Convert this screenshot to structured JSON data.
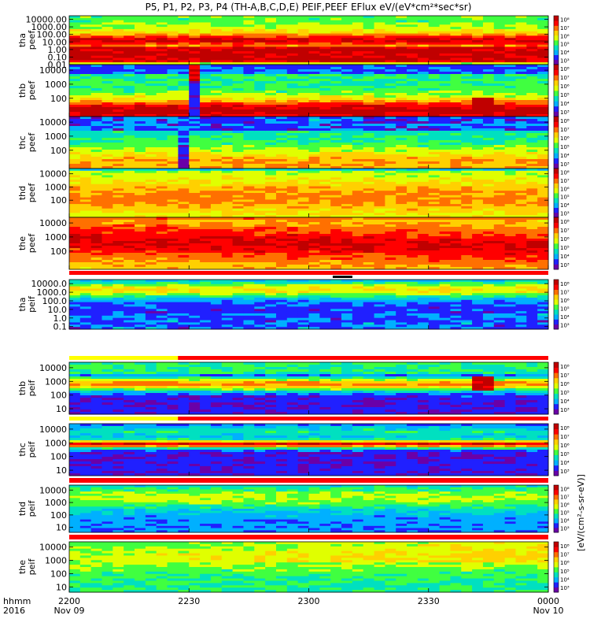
{
  "chart_data": {
    "type": "heatmap",
    "title": "P5, P1, P2, P3, P4 (TH-A,B,C,D,E) PEIF,PEEF EFlux eV/(eV*cm²*sec*sr)",
    "colorbar_label": "[eV/(cm²-s-sr-eV)]",
    "colormap": [
      "#6a00a8",
      "#2020ff",
      "#00b0ff",
      "#00e0c0",
      "#40ff40",
      "#e0ff00",
      "#ffd000",
      "#ff7000",
      "#ff0000",
      "#c00000"
    ],
    "colorbar_ticks": [
      "10³",
      "10⁴",
      "10⁵",
      "10⁶",
      "10⁷",
      "10⁸"
    ],
    "x_axis": {
      "row_label": "hhmm",
      "year": "2016",
      "ticks": [
        "2200",
        "2230",
        "2300",
        "2330",
        "0000"
      ],
      "dates": [
        "Nov 09",
        "",
        "",
        "",
        "Nov 10"
      ]
    },
    "panels": [
      {
        "id": "tha-peef",
        "label": [
          "tha",
          "peef"
        ],
        "ticks": [
          "10000.00",
          "1000.00",
          "100.00",
          "10.00",
          "1.00",
          "0.10",
          "0.01"
        ],
        "ymin": 0.01,
        "ymax": 30000,
        "style": "tha_e"
      },
      {
        "id": "thb-peef",
        "label": [
          "thb",
          "peef"
        ],
        "ticks": [
          "10000",
          "1000",
          "100"
        ],
        "ymin": 5,
        "ymax": 25000,
        "style": "thb_e"
      },
      {
        "id": "thc-peef",
        "label": [
          "thc",
          "peef"
        ],
        "ticks": [
          "10000",
          "1000",
          "100"
        ],
        "ymin": 5,
        "ymax": 25000,
        "style": "thc_e"
      },
      {
        "id": "thd-peef",
        "label": [
          "thd",
          "peef"
        ],
        "ticks": [
          "10000",
          "1000",
          "100"
        ],
        "ymin": 5,
        "ymax": 25000,
        "style": "thd_e"
      },
      {
        "id": "the-peef",
        "label": [
          "the",
          "peef"
        ],
        "ticks": [
          "10000",
          "1000",
          "100"
        ],
        "ymin": 5,
        "ymax": 25000,
        "style": "the_e"
      },
      {
        "id": "tha-peif",
        "label": [
          "tha",
          "peif"
        ],
        "ticks": [
          "10000.0",
          "1000.0",
          "100.0",
          "10.0",
          "1.0",
          "0.1"
        ],
        "ymin": 0.05,
        "ymax": 30000,
        "style": "tha_i"
      },
      {
        "id": "thb-peif",
        "label": [
          "thb",
          "peif"
        ],
        "ticks": [
          "10000",
          "1000",
          "100",
          "10"
        ],
        "ymin": 4,
        "ymax": 25000,
        "style": "thb_i"
      },
      {
        "id": "thc-peif",
        "label": [
          "thc",
          "peif"
        ],
        "ticks": [
          "10000",
          "1000",
          "100",
          "10"
        ],
        "ymin": 4,
        "ymax": 25000,
        "style": "thc_i"
      },
      {
        "id": "thd-peif",
        "label": [
          "thd",
          "peif"
        ],
        "ticks": [
          "10000",
          "1000",
          "100",
          "10"
        ],
        "ymin": 4,
        "ymax": 25000,
        "style": "thd_i"
      },
      {
        "id": "the-peif",
        "label": [
          "the",
          "peif"
        ],
        "ticks": [
          "10000",
          "1000",
          "100",
          "10"
        ],
        "ymin": 4,
        "ymax": 25000,
        "style": "the_i"
      }
    ]
  }
}
